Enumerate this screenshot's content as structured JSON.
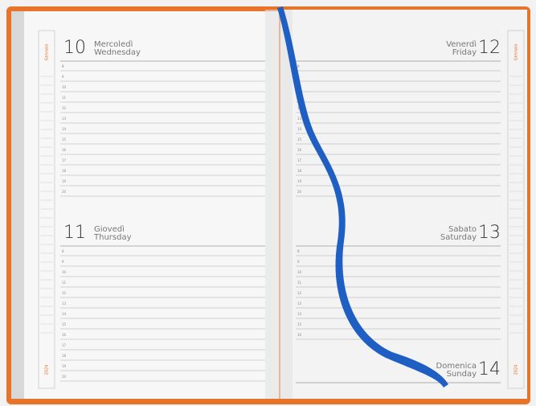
{
  "month": "Gennaio",
  "year": "2024",
  "hours": [
    "8",
    "9",
    "10",
    "11",
    "12",
    "13",
    "14",
    "15",
    "16",
    "17",
    "18",
    "19",
    "20"
  ],
  "days": [
    {
      "number": "10",
      "name_it": "Mercoledì",
      "name_en": "Wednesday"
    },
    {
      "number": "11",
      "name_it": "Giovedì",
      "name_en": "Thursday"
    },
    {
      "number": "12",
      "name_it": "Venerdì",
      "name_en": "Friday"
    },
    {
      "number": "13",
      "name_it": "Sabato",
      "name_en": "Saturday"
    },
    {
      "number": "14",
      "name_it": "Domenica",
      "name_en": "Sunday"
    }
  ]
}
